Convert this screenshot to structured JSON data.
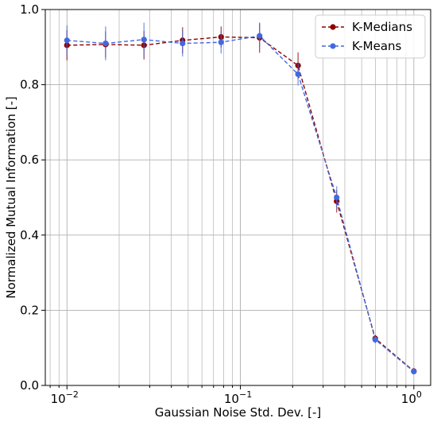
{
  "chart_data": {
    "type": "line",
    "title": "",
    "xlabel": "Gaussian Noise Std. Dev. [-]",
    "ylabel": "Normalized Mutual Information [-]",
    "xscale": "log",
    "xlim": [
      0.0075,
      1.25
    ],
    "ylim": [
      0.0,
      1.0
    ],
    "grid": true,
    "legend_position": "top-right",
    "x_ticks": [
      {
        "value": 0.01,
        "base": "10",
        "exp": "−2"
      },
      {
        "value": 0.1,
        "base": "10",
        "exp": "−1"
      },
      {
        "value": 1,
        "base": "10",
        "exp": "0"
      }
    ],
    "y_ticks": [
      {
        "value": 0.0,
        "label": "0.0"
      },
      {
        "value": 0.2,
        "label": "0.2"
      },
      {
        "value": 0.4,
        "label": "0.4"
      },
      {
        "value": 0.6,
        "label": "0.6"
      },
      {
        "value": 0.8,
        "label": "0.8"
      },
      {
        "value": 1.0,
        "label": "1.0"
      }
    ],
    "x": [
      0.01,
      0.0167,
      0.0278,
      0.0464,
      0.0774,
      0.129,
      0.215,
      0.359,
      0.599,
      1.0
    ],
    "series": [
      {
        "name": "K-Medians",
        "color": "#8b0000",
        "values": [
          0.905,
          0.907,
          0.905,
          0.918,
          0.927,
          0.925,
          0.851,
          0.49,
          0.125,
          0.038
        ],
        "errors": [
          0.04,
          0.035,
          0.038,
          0.035,
          0.028,
          0.04,
          0.035,
          0.03,
          0.01,
          0.005
        ]
      },
      {
        "name": "K-Means",
        "color": "#4169e1",
        "values": [
          0.918,
          0.91,
          0.92,
          0.91,
          0.913,
          0.93,
          0.828,
          0.5,
          0.122,
          0.037
        ],
        "errors": [
          0.04,
          0.045,
          0.045,
          0.035,
          0.03,
          0.03,
          0.03,
          0.03,
          0.01,
          0.005
        ]
      }
    ]
  }
}
